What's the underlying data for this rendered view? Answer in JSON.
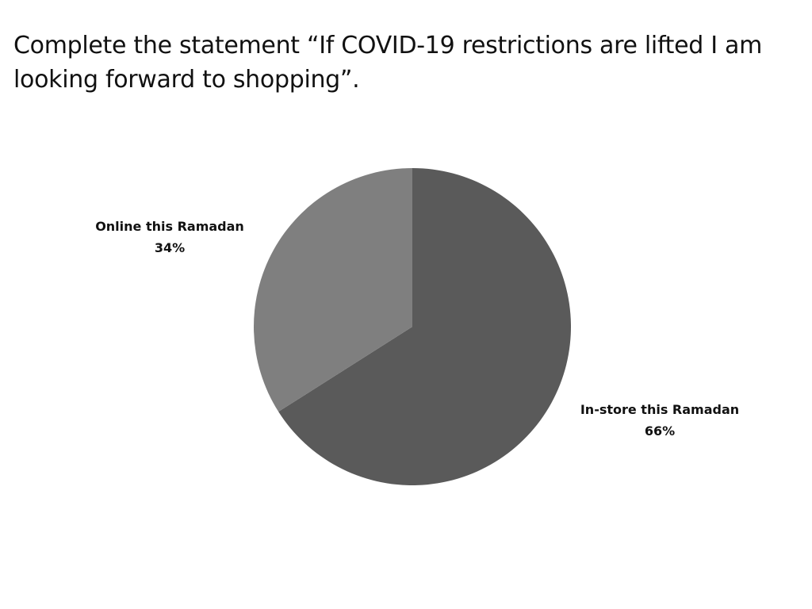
{
  "chart_data": {
    "type": "pie",
    "title": "Complete the statement “If COVID-19 restrictions are lifted I am looking forward to shopping”.",
    "categories": [
      "In-store this Ramadan",
      "Online this Ramadan"
    ],
    "values": [
      66,
      34
    ],
    "value_labels": [
      "66%",
      "34%"
    ],
    "colors": [
      "#5a5a5a",
      "#7f7f7f"
    ],
    "legend": "none"
  }
}
